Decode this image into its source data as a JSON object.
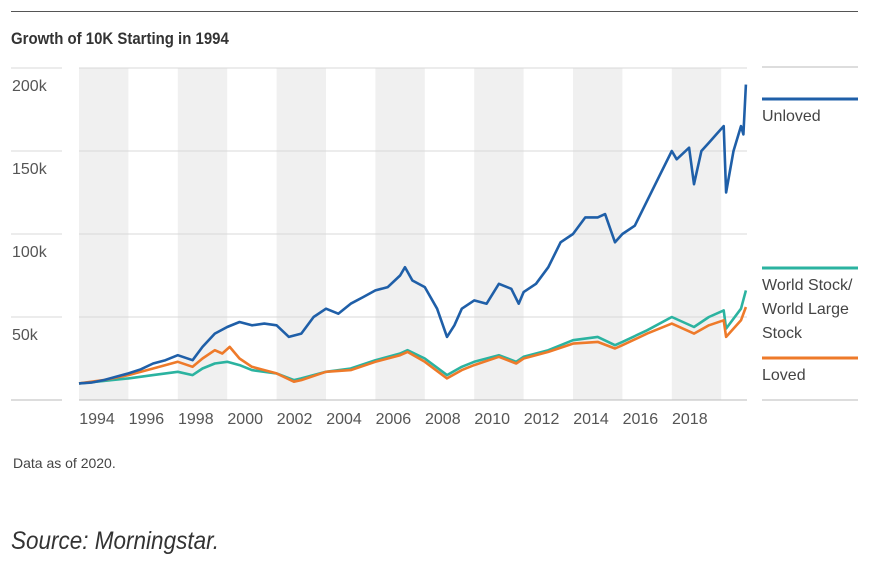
{
  "chart_data": {
    "type": "line",
    "title": "Growth of 10K Starting in 1994",
    "xlabel": "",
    "ylabel": "",
    "xlim": [
      1994,
      2021
    ],
    "ylim": [
      0,
      200000
    ],
    "x_ticks": [
      "1994",
      "1996",
      "1998",
      "2000",
      "2002",
      "2004",
      "2006",
      "2008",
      "2010",
      "2012",
      "2014",
      "2016",
      "2018"
    ],
    "y_ticks": [
      {
        "value": 200000,
        "label": "200k"
      },
      {
        "value": 150000,
        "label": "150k"
      },
      {
        "value": 100000,
        "label": "100k"
      },
      {
        "value": 50000,
        "label": "50k"
      }
    ],
    "grid": true,
    "shaded_bands_years": [
      [
        1994,
        1996
      ],
      [
        1998,
        2000
      ],
      [
        2002,
        2004
      ],
      [
        2006,
        2008
      ],
      [
        2010,
        2012
      ],
      [
        2014,
        2016
      ],
      [
        2018,
        2020
      ]
    ],
    "legend_position": "right",
    "series": [
      {
        "name": "Unloved",
        "legend": [
          "Unloved"
        ],
        "color": "#1f5fa8",
        "x": [
          1994,
          1994.5,
          1995,
          1995.5,
          1996,
          1996.5,
          1997,
          1997.5,
          1998,
          1998.6,
          1999,
          1999.5,
          2000,
          2000.5,
          2001,
          2001.5,
          2002,
          2002.5,
          2003,
          2003.5,
          2004,
          2004.5,
          2005,
          2005.5,
          2006,
          2006.5,
          2007,
          2007.2,
          2007.5,
          2008,
          2008.5,
          2008.9,
          2009.2,
          2009.5,
          2010,
          2010.5,
          2011,
          2011.5,
          2011.8,
          2012,
          2012.5,
          2013,
          2013.5,
          2014,
          2014.5,
          2015,
          2015.3,
          2015.7,
          2016,
          2016.5,
          2017,
          2017.5,
          2018,
          2018.2,
          2018.7,
          2018.9,
          2019.2,
          2019.5,
          2019.8,
          2020.1,
          2020.2,
          2020.5,
          2020.8,
          2020.9,
          2021
        ],
        "y": [
          10000,
          10500,
          12000,
          14000,
          16000,
          18500,
          22000,
          24000,
          27000,
          24000,
          32000,
          40000,
          44000,
          47000,
          45000,
          46000,
          45000,
          38000,
          40000,
          50000,
          55000,
          52000,
          58000,
          62000,
          66000,
          68000,
          75000,
          80000,
          72000,
          68000,
          55000,
          38000,
          45000,
          55000,
          60000,
          58000,
          70000,
          67000,
          58000,
          65000,
          70000,
          80000,
          95000,
          100000,
          110000,
          110000,
          112000,
          95000,
          100000,
          105000,
          120000,
          135000,
          150000,
          145000,
          152000,
          130000,
          150000,
          155000,
          160000,
          165000,
          125000,
          150000,
          165000,
          160000,
          190000
        ]
      },
      {
        "name": "World Stock/World Large Stock",
        "legend": [
          "World Stock/",
          "World Large",
          "Stock"
        ],
        "color": "#2bb3a0",
        "x": [
          1994,
          1995,
          1996,
          1997,
          1998,
          1998.6,
          1999,
          1999.5,
          2000,
          2000.5,
          2001,
          2002,
          2002.7,
          2003,
          2004,
          2005,
          2006,
          2007,
          2007.3,
          2008,
          2008.9,
          2009.5,
          2010,
          2011,
          2011.7,
          2012,
          2013,
          2014,
          2015,
          2015.7,
          2016,
          2017,
          2018,
          2018.9,
          2019.5,
          2020.1,
          2020.2,
          2020.8,
          2021
        ],
        "y": [
          10000,
          11500,
          13000,
          15000,
          17000,
          15000,
          19000,
          22000,
          23000,
          21000,
          18000,
          16000,
          12000,
          13000,
          17000,
          19000,
          24000,
          28000,
          30000,
          25000,
          15000,
          20000,
          23000,
          27000,
          23000,
          26000,
          30000,
          36000,
          38000,
          33000,
          35000,
          42000,
          50000,
          44000,
          50000,
          54000,
          43000,
          55000,
          66000
        ]
      },
      {
        "name": "Loved",
        "legend": [
          "Loved"
        ],
        "color": "#ee7a2a",
        "x": [
          1994,
          1995,
          1996,
          1997,
          1998,
          1998.6,
          1999,
          1999.5,
          1999.8,
          2000.1,
          2000.5,
          2001,
          2001.5,
          2002,
          2002.7,
          2003,
          2004,
          2005,
          2006,
          2007,
          2007.3,
          2008,
          2008.9,
          2009.5,
          2010,
          2011,
          2011.7,
          2012,
          2013,
          2014,
          2015,
          2015.7,
          2016,
          2017,
          2018,
          2018.9,
          2019.5,
          2020.1,
          2020.2,
          2020.8,
          2021
        ],
        "y": [
          10000,
          12000,
          15000,
          19000,
          23000,
          20000,
          25000,
          30000,
          28000,
          32000,
          25000,
          20000,
          18000,
          16000,
          11000,
          12000,
          17000,
          18000,
          23000,
          27000,
          29000,
          23000,
          13000,
          18000,
          21000,
          26000,
          22000,
          25000,
          29000,
          34000,
          35000,
          31000,
          33000,
          40000,
          46000,
          40000,
          45000,
          48000,
          38000,
          48000,
          56000
        ]
      }
    ]
  },
  "footer": {
    "note": "Data as of 2020.",
    "source": "Source: Morningstar."
  }
}
